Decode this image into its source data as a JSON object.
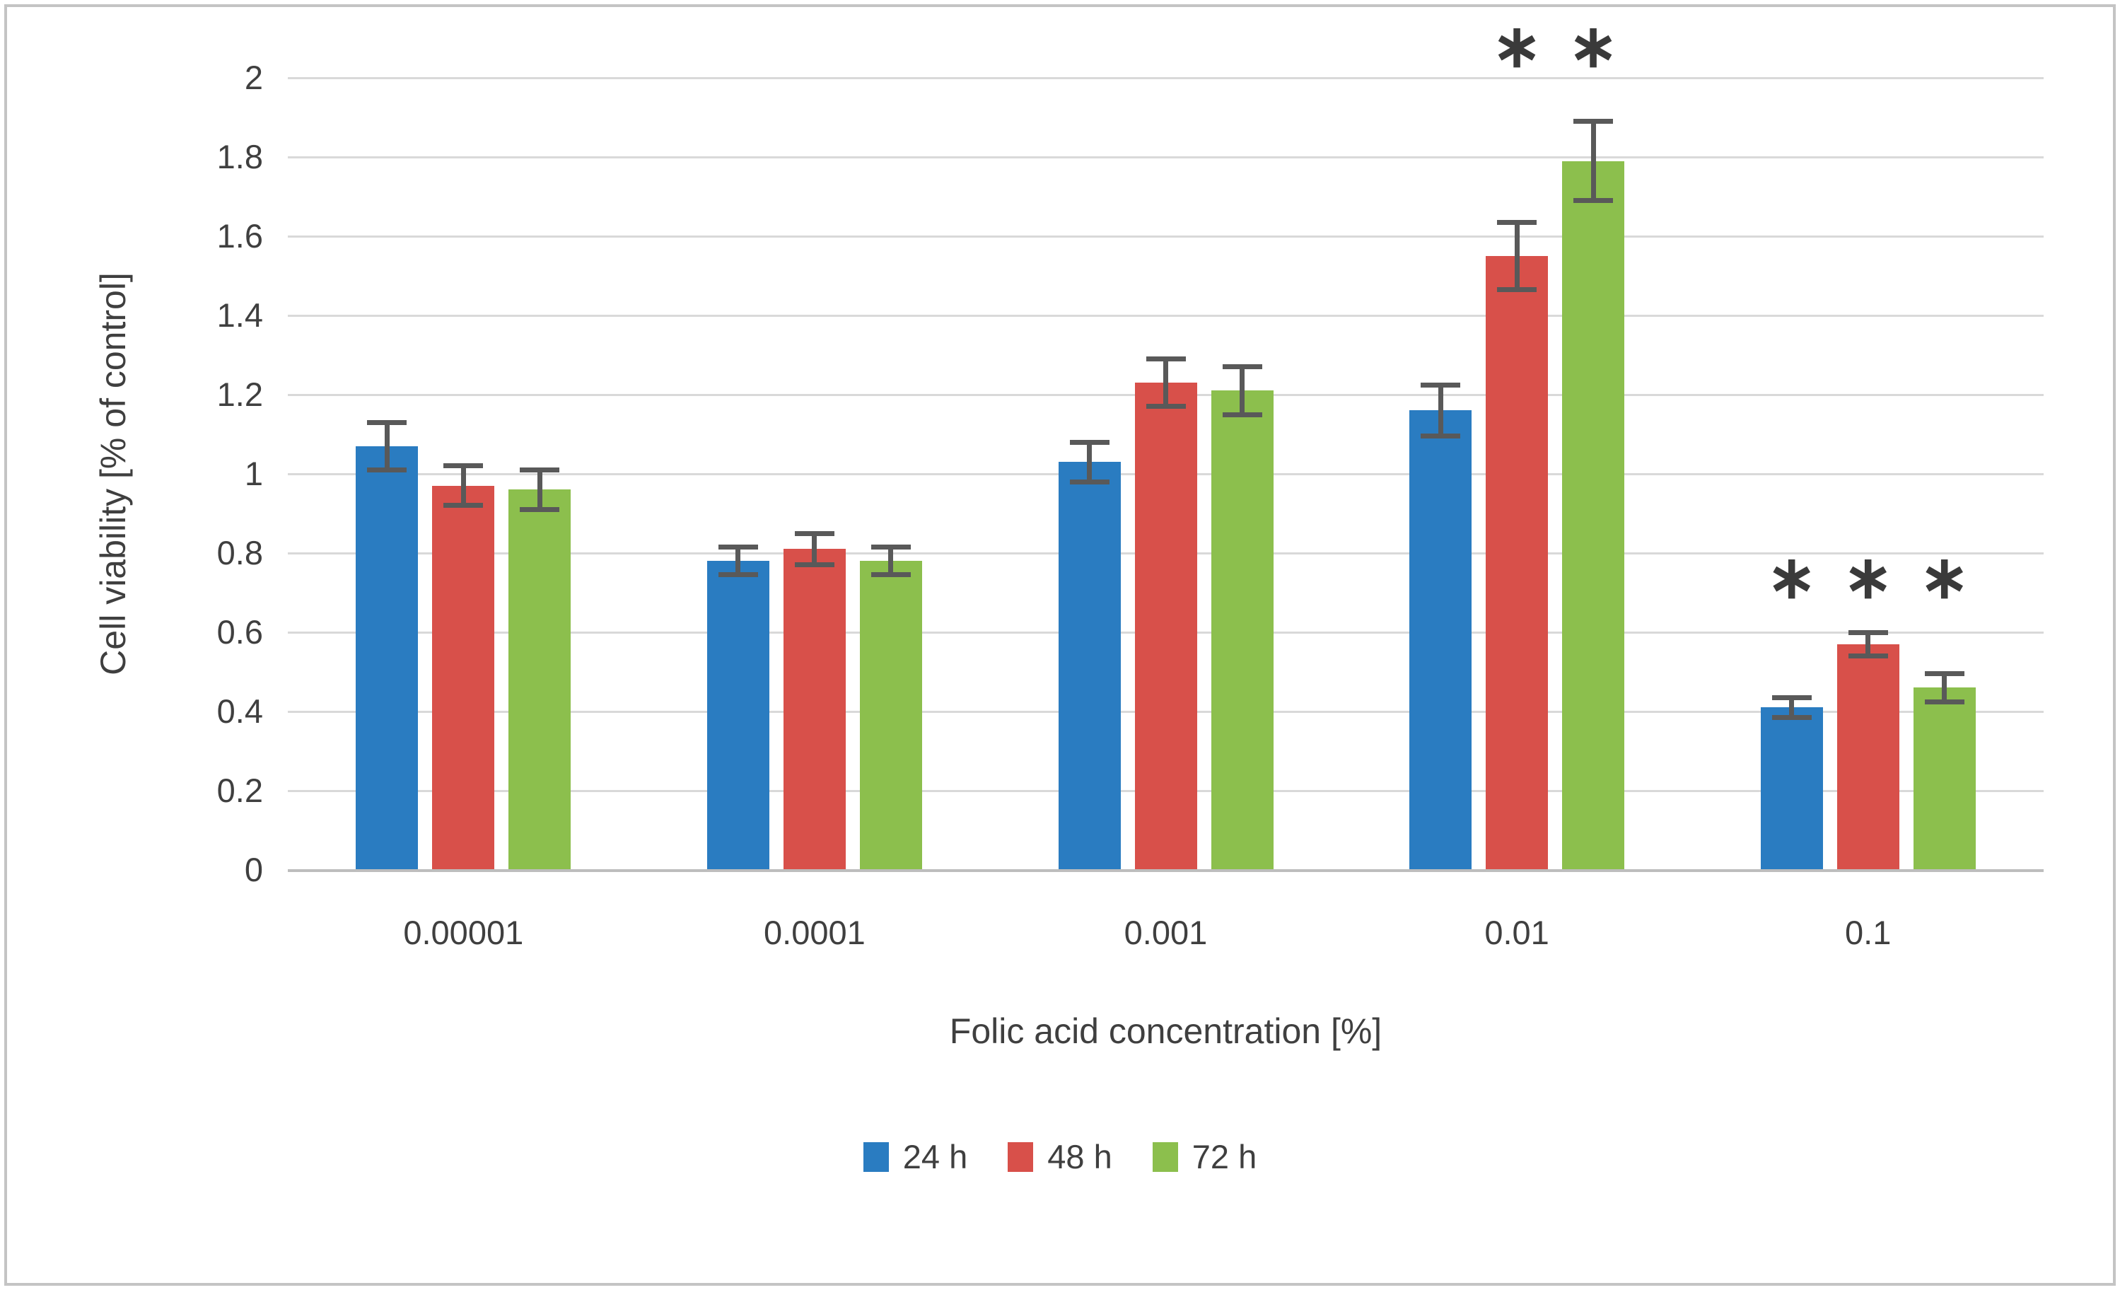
{
  "frame": {
    "border_color": "#C4C4C4",
    "background": "#FFFFFF"
  },
  "chart_data": {
    "type": "bar",
    "title": "",
    "xlabel": "Folic acid concentration [%]",
    "ylabel": "Cell viability [% of control]",
    "categories": [
      "0.00001",
      "0.0001",
      "0.001",
      "0.01",
      "0.1"
    ],
    "ylim": [
      0,
      2
    ],
    "ytick_step": 0.2,
    "yticks": [
      {
        "label": "0",
        "value": 0
      },
      {
        "label": "0.2",
        "value": 0.2
      },
      {
        "label": "0.4",
        "value": 0.4
      },
      {
        "label": "0.6",
        "value": 0.6
      },
      {
        "label": "0.8",
        "value": 0.8
      },
      {
        "label": "1",
        "value": 1
      },
      {
        "label": "1.2",
        "value": 1.2
      },
      {
        "label": "1.4",
        "value": 1.4
      },
      {
        "label": "1.6",
        "value": 1.6
      },
      {
        "label": "1.8",
        "value": 1.8
      },
      {
        "label": "2",
        "value": 2
      }
    ],
    "grid": true,
    "legend_position": "bottom-center",
    "significance_marker": "∗",
    "series": [
      {
        "name": "24 h",
        "color": "#2A7CC1",
        "values": [
          1.07,
          0.78,
          1.03,
          1.16,
          0.41
        ],
        "errors": [
          0.06,
          0.035,
          0.05,
          0.065,
          0.025
        ],
        "sig_y": [
          null,
          null,
          null,
          null,
          0.74
        ]
      },
      {
        "name": "48 h",
        "color": "#D8504A",
        "values": [
          0.97,
          0.81,
          1.23,
          1.55,
          0.57
        ],
        "errors": [
          0.05,
          0.04,
          0.06,
          0.085,
          0.03
        ],
        "sig_y": [
          null,
          null,
          null,
          2.08,
          0.74
        ]
      },
      {
        "name": "72 h",
        "color": "#8CBF4D",
        "values": [
          0.96,
          0.78,
          1.21,
          1.79,
          0.46
        ],
        "errors": [
          0.05,
          0.035,
          0.06,
          0.1,
          0.035
        ],
        "sig_y": [
          null,
          null,
          null,
          2.08,
          0.74
        ]
      }
    ],
    "colors": {
      "grid": "#D9D9D9",
      "axis": "#BDBDBD",
      "text": "#3F3F3F",
      "error_bar": "#595959"
    }
  }
}
